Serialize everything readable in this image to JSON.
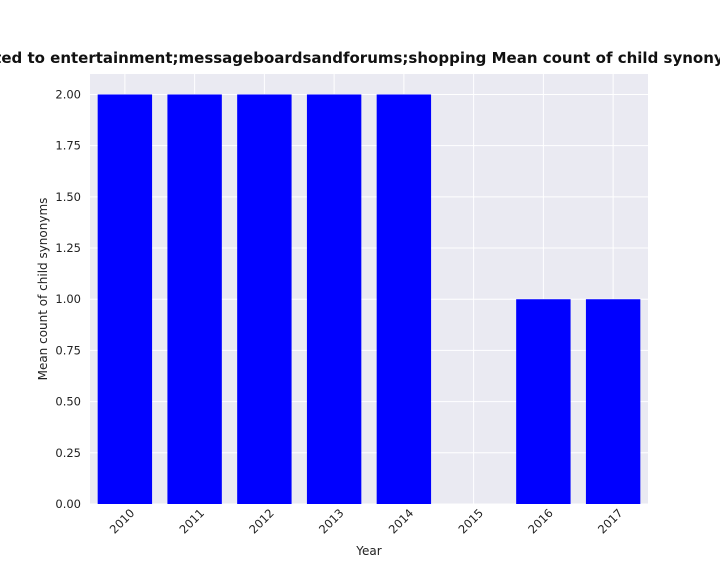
{
  "chart_data": {
    "type": "bar",
    "title": "elated to entertainment;messageboardsandforums;shopping Mean count of child synonyms in",
    "xlabel": "Year",
    "ylabel": "Mean count of child synonyms",
    "categories": [
      "2010",
      "2011",
      "2012",
      "2013",
      "2014",
      "2015",
      "2016",
      "2017"
    ],
    "values": [
      2,
      2,
      2,
      2,
      2,
      0,
      1,
      1
    ],
    "ylim": [
      0,
      2.1
    ],
    "yticks": [
      0.0,
      0.25,
      0.5,
      0.75,
      1.0,
      1.25,
      1.5,
      1.75,
      2.0
    ],
    "ytick_labels": [
      "0.00",
      "0.25",
      "0.50",
      "0.75",
      "1.00",
      "1.25",
      "1.50",
      "1.75",
      "2.00"
    ],
    "grid": true,
    "colors": {
      "bar": "#0000ff",
      "plot_background": "#eaeaf2",
      "grid": "#ffffff"
    }
  }
}
